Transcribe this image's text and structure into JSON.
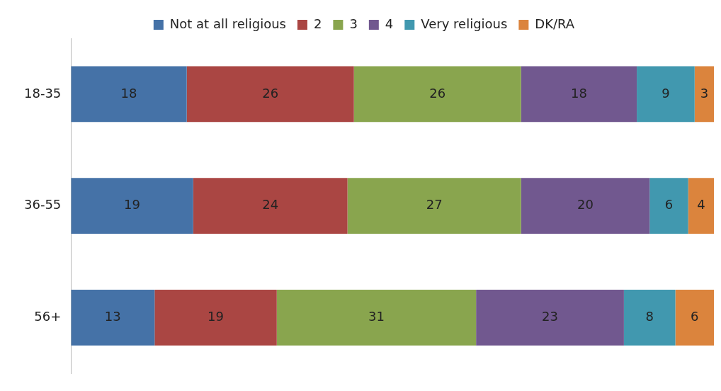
{
  "chart_data": {
    "type": "bar",
    "orientation": "horizontal",
    "stacked": true,
    "data_labels": true,
    "legend": "top",
    "categories": [
      "18-35",
      "36-55",
      "56+"
    ],
    "series": [
      {
        "name": "Not at all religious",
        "color": "#4572a7",
        "values": [
          18,
          19,
          13
        ]
      },
      {
        "name": "2",
        "color": "#aa4643",
        "values": [
          26,
          24,
          19
        ]
      },
      {
        "name": "3",
        "color": "#89a54e",
        "values": [
          26,
          27,
          31
        ]
      },
      {
        "name": "4",
        "color": "#71588f",
        "values": [
          18,
          20,
          23
        ]
      },
      {
        "name": "Very religious",
        "color": "#4198af",
        "values": [
          9,
          6,
          8
        ]
      },
      {
        "name": "DK/RA",
        "color": "#db843d",
        "values": [
          3,
          4,
          6
        ]
      }
    ]
  }
}
